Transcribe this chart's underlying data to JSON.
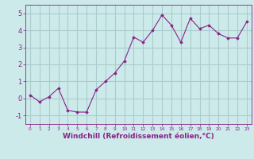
{
  "x": [
    0,
    1,
    2,
    3,
    4,
    5,
    6,
    7,
    8,
    9,
    10,
    11,
    12,
    13,
    14,
    15,
    16,
    17,
    18,
    19,
    20,
    21,
    22,
    23
  ],
  "y": [
    0.2,
    -0.2,
    0.1,
    0.6,
    -0.7,
    -0.8,
    -0.8,
    0.5,
    1.0,
    1.5,
    2.2,
    3.6,
    3.3,
    4.0,
    4.9,
    4.3,
    3.3,
    4.7,
    4.1,
    4.3,
    3.8,
    3.55,
    3.55,
    4.5
  ],
  "line_color": "#882288",
  "marker": "D",
  "marker_size": 1.8,
  "bg_color": "#cceaea",
  "grid_color": "#aacccc",
  "xlabel": "Windchill (Refroidissement éolien,°C)",
  "xlabel_fontsize": 6.5,
  "xlabel_color": "#882288",
  "tick_color": "#882288",
  "ylim": [
    -1.5,
    5.5
  ],
  "yticks": [
    -1,
    0,
    1,
    2,
    3,
    4,
    5
  ],
  "xlim": [
    -0.5,
    23.5
  ],
  "xticks": [
    0,
    1,
    2,
    3,
    4,
    5,
    6,
    7,
    8,
    9,
    10,
    11,
    12,
    13,
    14,
    15,
    16,
    17,
    18,
    19,
    20,
    21,
    22,
    23
  ]
}
